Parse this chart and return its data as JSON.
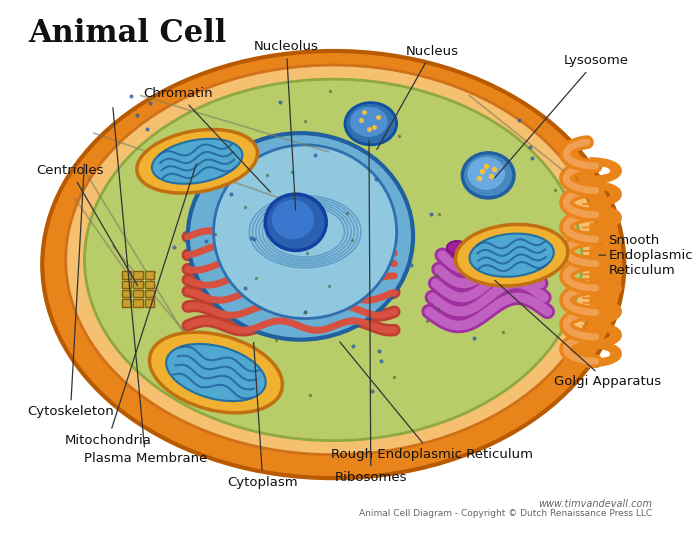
{
  "title": "Animal Cell",
  "background": "#ffffff",
  "cell_membrane_color": "#e8851a",
  "cell_membrane_inner_color": "#f4b56a",
  "cytoplasm_color": "#b5cc6e",
  "nucleus_outer_color": "#7ab8d9",
  "nucleus_inner_color": "#aed4e8",
  "nucleolus_color": "#3a7abf",
  "chromatin_color": "#5a9fc0",
  "mitochondria_outer": "#f0b030",
  "mitochondria_inner": "#60b8d8",
  "er_rough_color": "#c8523a",
  "er_smooth_color": "#e8851a",
  "golgi_color": "#c060c0",
  "ribosome_color": "#4a80b0",
  "lysosome_color": "#4a80b0",
  "centriole_color": "#c8a030",
  "labels": {
    "title": "Animal Cell",
    "nucleolus": "Nucleolus",
    "nucleus": "Nucleus",
    "lysosome": "Lysosome",
    "chromatin": "Chromatin",
    "smooth_er": "Smooth\nEndoplasmic\nReticulum",
    "centrioles": "Centrioles",
    "golgi": "Golgi Apparatus",
    "rough_er": "Rough Endoplasmic Reticulum",
    "ribosomes": "Ribosomes",
    "cytoplasm": "Cytoplasm",
    "plasma_membrane": "Plasma Membrane",
    "mitochondria": "Mitochondria",
    "cytoskeleton": "Cytoskeleton"
  },
  "watermark": "www.timvandevall.com",
  "copyright": "Animal Cell Diagram - Copyright © Dutch Renaissance Press LLC"
}
